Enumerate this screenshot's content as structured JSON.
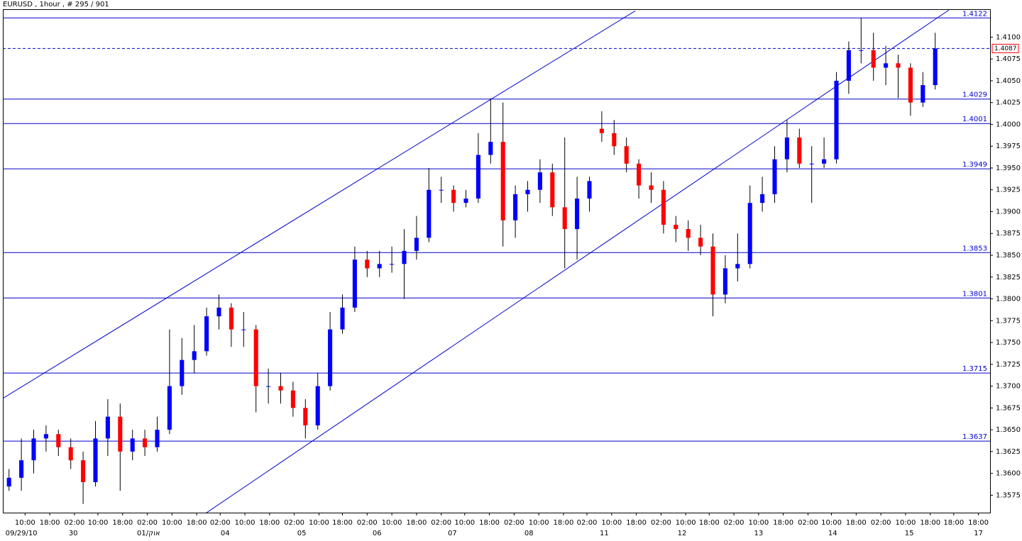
{
  "chart_data": {
    "type": "candlestick",
    "title": "EURUSD , 1hour , # 295 / 901",
    "up_color": "#0000ff",
    "down_color": "#ff0000",
    "line_color": "#0000cc",
    "open": [
      1.3585,
      1.3595,
      1.3615,
      1.364,
      1.3645,
      1.363,
      1.3615,
      1.359,
      1.364,
      1.3665,
      1.3625,
      1.364,
      1.363,
      1.365,
      1.37,
      1.373,
      1.374,
      1.378,
      1.379,
      1.3765,
      1.3765,
      1.37,
      1.37,
      1.3695,
      1.3675,
      1.3655,
      1.37,
      1.3765,
      1.379,
      1.3845,
      1.3835,
      1.384,
      1.384,
      1.3855,
      1.387,
      1.3925,
      1.3925,
      1.391,
      1.3915,
      1.3965,
      1.398,
      1.389,
      1.392,
      1.3925,
      1.3945,
      1.3905,
      1.388,
      1.3915,
      1.3995,
      1.399,
      1.3975,
      1.3955,
      1.393,
      1.3925,
      1.3885,
      1.388,
      1.387,
      1.386,
      1.3805,
      1.3835,
      1.384,
      1.391,
      1.392,
      1.396,
      1.3985,
      1.3955,
      1.3955,
      1.396,
      1.405,
      1.4085,
      1.4085,
      1.4065,
      1.407,
      1.4065,
      1.4025,
      1.4045
    ],
    "high": [
      1.3605,
      1.364,
      1.365,
      1.3655,
      1.365,
      1.364,
      1.3625,
      1.366,
      1.3685,
      1.368,
      1.365,
      1.365,
      1.3665,
      1.3765,
      1.3755,
      1.377,
      1.379,
      1.3805,
      1.3795,
      1.3785,
      1.377,
      1.372,
      1.3715,
      1.3705,
      1.3685,
      1.3715,
      1.3785,
      1.3805,
      1.386,
      1.3855,
      1.3855,
      1.386,
      1.388,
      1.3895,
      1.395,
      1.394,
      1.393,
      1.3925,
      1.399,
      1.403,
      1.4025,
      1.393,
      1.3935,
      1.396,
      1.3955,
      1.3985,
      1.394,
      1.394,
      1.4015,
      1.4005,
      1.3985,
      1.396,
      1.3945,
      1.3935,
      1.3895,
      1.389,
      1.3885,
      1.3875,
      1.385,
      1.3875,
      1.393,
      1.394,
      1.3975,
      1.4005,
      1.3995,
      1.3975,
      1.3985,
      1.406,
      1.4095,
      1.4122,
      1.4105,
      1.409,
      1.408,
      1.407,
      1.406,
      1.4105
    ],
    "low": [
      1.358,
      1.358,
      1.36,
      1.3625,
      1.362,
      1.3605,
      1.3565,
      1.3585,
      1.362,
      1.358,
      1.3615,
      1.362,
      1.3625,
      1.3645,
      1.369,
      1.3715,
      1.3735,
      1.3765,
      1.3745,
      1.3745,
      1.367,
      1.368,
      1.368,
      1.3665,
      1.364,
      1.365,
      1.3695,
      1.376,
      1.3785,
      1.3825,
      1.3825,
      1.383,
      1.38,
      1.3845,
      1.3865,
      1.391,
      1.39,
      1.3905,
      1.391,
      1.3955,
      1.386,
      1.387,
      1.39,
      1.391,
      1.3895,
      1.3835,
      1.3845,
      1.39,
      1.398,
      1.3965,
      1.3945,
      1.3915,
      1.391,
      1.3875,
      1.3865,
      1.3855,
      1.385,
      1.378,
      1.3795,
      1.382,
      1.3835,
      1.39,
      1.391,
      1.3945,
      1.395,
      1.391,
      1.395,
      1.3955,
      1.4035,
      1.407,
      1.405,
      1.4045,
      1.403,
      1.401,
      1.402,
      1.404
    ],
    "close": [
      1.3595,
      1.3615,
      1.364,
      1.3645,
      1.363,
      1.3615,
      1.359,
      1.364,
      1.3665,
      1.3625,
      1.364,
      1.363,
      1.365,
      1.37,
      1.373,
      1.374,
      1.378,
      1.379,
      1.3765,
      1.3765,
      1.37,
      1.37,
      1.3695,
      1.3675,
      1.3655,
      1.37,
      1.3765,
      1.379,
      1.3845,
      1.3835,
      1.384,
      1.384,
      1.3855,
      1.387,
      1.3925,
      1.3925,
      1.391,
      1.3915,
      1.3965,
      1.398,
      1.389,
      1.392,
      1.3925,
      1.3945,
      1.3905,
      1.388,
      1.3915,
      1.3935,
      1.399,
      1.3975,
      1.3955,
      1.393,
      1.3925,
      1.3885,
      1.388,
      1.387,
      1.386,
      1.3805,
      1.3835,
      1.384,
      1.391,
      1.392,
      1.396,
      1.3985,
      1.3955,
      1.3955,
      1.396,
      1.405,
      1.4085,
      1.4085,
      1.4065,
      1.407,
      1.4065,
      1.4025,
      1.4045,
      1.4087
    ],
    "levels": [
      1.4122,
      1.4029,
      1.4001,
      1.3949,
      1.3853,
      1.3801,
      1.3715,
      1.3637
    ],
    "current_price": 1.4087,
    "trendlines": [
      {
        "x": [
          0,
          51.2
        ],
        "y": [
          1.3686,
          1.413
        ]
      },
      {
        "x": [
          16.4,
          76.6
        ],
        "y": [
          1.3554,
          1.4131
        ]
      }
    ],
    "xlim": [
      0,
      80
    ],
    "ylim": [
      1.3555,
      1.4132
    ],
    "yticks": [
      1.3575,
      {
        "value": 1.36,
        "label": "1.3600"
      },
      1.3625,
      {
        "value": 1.365,
        "label": "1.3650"
      },
      1.3675,
      {
        "value": 1.37,
        "label": "1.3700"
      },
      1.3725,
      {
        "value": 1.375,
        "label": "1.3750"
      },
      1.3775,
      {
        "value": 1.38,
        "label": "1.3800"
      },
      1.3825,
      {
        "value": 1.385,
        "label": "1.3850"
      },
      1.3875,
      {
        "value": 1.39,
        "label": "1.3900"
      },
      1.3925,
      {
        "value": 1.395,
        "label": "1.3950"
      },
      1.3975,
      {
        "value": 1.4,
        "label": "1.4000"
      },
      1.4025,
      {
        "value": 1.405,
        "label": "1.4050"
      },
      1.4075,
      {
        "value": 1.41,
        "label": "1.4100"
      }
    ],
    "xticks": [
      {
        "value": 1.8,
        "label": "10:00"
      },
      {
        "value": 3.8,
        "label": "18:00"
      },
      {
        "value": 5.8,
        "label": "02:00"
      },
      {
        "value": 7.7,
        "label": "10:00"
      },
      {
        "value": 9.7,
        "label": "18:00"
      },
      {
        "value": 11.7,
        "label": "02:00"
      },
      {
        "value": 13.7,
        "label": "10:00"
      },
      {
        "value": 15.7,
        "label": "18:00"
      },
      {
        "value": 17.6,
        "label": "02:00"
      },
      {
        "value": 19.6,
        "label": "10:00"
      },
      {
        "value": 21.6,
        "label": "18:00"
      },
      {
        "value": 23.6,
        "label": "02:00"
      },
      {
        "value": 25.6,
        "label": "10:00"
      },
      {
        "value": 27.5,
        "label": "18:00"
      },
      {
        "value": 29.5,
        "label": "02:00"
      },
      {
        "value": 31.5,
        "label": "10:00"
      },
      {
        "value": 33.5,
        "label": "18:00"
      },
      {
        "value": 35.5,
        "label": "02:00"
      },
      {
        "value": 37.4,
        "label": "10:00"
      },
      {
        "value": 39.4,
        "label": "18:00"
      },
      {
        "value": 41.4,
        "label": "02:00"
      },
      {
        "value": 43.4,
        "label": "10:00"
      },
      {
        "value": 45.4,
        "label": "18:00"
      },
      {
        "value": 47.3,
        "label": "02:00"
      },
      {
        "value": 49.3,
        "label": "10:00"
      },
      {
        "value": 51.3,
        "label": "18:00"
      },
      {
        "value": 53.3,
        "label": "02:00"
      },
      {
        "value": 55.3,
        "label": "10:00"
      },
      {
        "value": 57.2,
        "label": "18:00"
      },
      {
        "value": 59.2,
        "label": "02:00"
      },
      {
        "value": 61.2,
        "label": "10:00"
      },
      {
        "value": 63.2,
        "label": "18:00"
      },
      {
        "value": 65.2,
        "label": "02:00"
      },
      {
        "value": 67.1,
        "label": "10:00"
      },
      {
        "value": 69.1,
        "label": "18:00"
      },
      {
        "value": 71.1,
        "label": "02:00"
      },
      {
        "value": 73.1,
        "label": "10:00"
      },
      {
        "value": 75.1,
        "label": "18:00"
      },
      {
        "value": 77.0,
        "label": "18:00"
      },
      {
        "value": 79.0,
        "label": "18:00"
      }
    ],
    "date_labels": [
      {
        "value": 1.5,
        "label": "09/29/10"
      },
      {
        "value": 5.7,
        "label": "30"
      },
      {
        "value": 11.8,
        "label": "01/אוק"
      },
      {
        "value": 18.0,
        "label": "04"
      },
      {
        "value": 24.2,
        "label": "05"
      },
      {
        "value": 30.3,
        "label": "06"
      },
      {
        "value": 36.4,
        "label": "07"
      },
      {
        "value": 42.6,
        "label": "08"
      },
      {
        "value": 48.7,
        "label": "11"
      },
      {
        "value": 55.0,
        "label": "12"
      },
      {
        "value": 61.2,
        "label": "13"
      },
      {
        "value": 67.2,
        "label": "14"
      },
      {
        "value": 73.4,
        "label": "15"
      },
      {
        "value": 79.0,
        "label": "17"
      }
    ]
  }
}
